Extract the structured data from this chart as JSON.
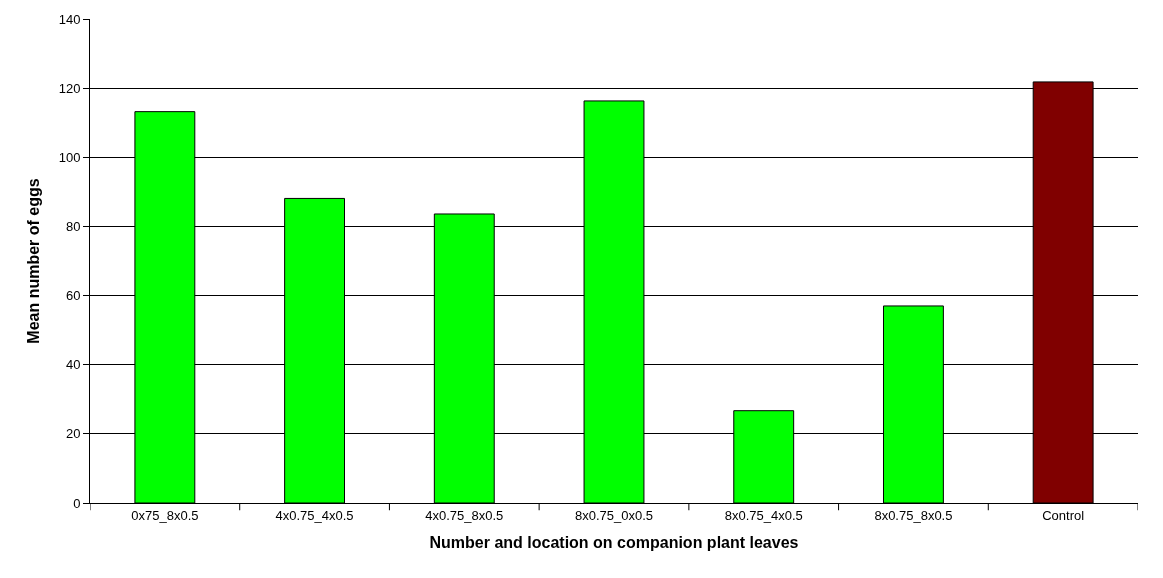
{
  "chart_data": {
    "type": "bar",
    "xlabel": "Number and location on companion plant leaves",
    "ylabel": "Mean number of eggs",
    "categories": [
      "0x75_8x0.5",
      "4x0.75_4x0.5",
      "4x0.75_8x0.5",
      "8x0.75_0x0.5",
      "8x0.75_4x0.5",
      "8x0.75_8x0.5",
      "Control"
    ],
    "values": [
      113.2,
      88.1,
      83.6,
      116.3,
      26.7,
      57.0,
      121.8
    ],
    "colors": [
      "#00ff00",
      "#00ff00",
      "#00ff00",
      "#00ff00",
      "#00ff00",
      "#00ff00",
      "#800000"
    ],
    "ylim": [
      0,
      140
    ],
    "yticks": [
      0,
      20,
      40,
      60,
      80,
      100,
      120,
      140
    ],
    "grid": "y"
  }
}
